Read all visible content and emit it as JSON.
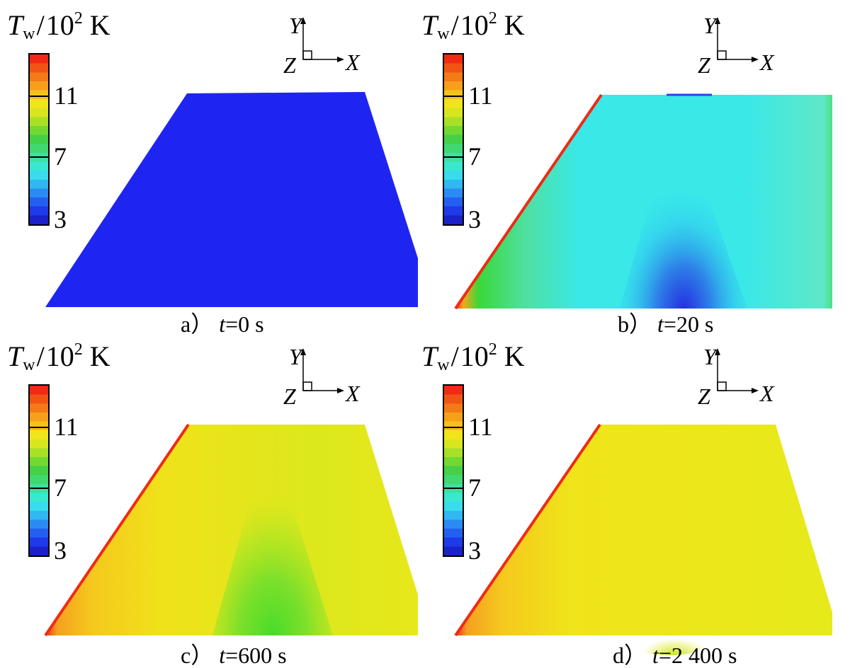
{
  "colorbar": {
    "symbol": "T",
    "subscript": "w",
    "slash": "/",
    "base": "10",
    "exponent": "2",
    "unit": "K",
    "ticks": [
      "11",
      "7",
      "3"
    ],
    "tick_values": [
      11,
      7,
      3
    ],
    "range": [
      3,
      14
    ]
  },
  "axes": {
    "x": "X",
    "y": "Y",
    "z": "Z"
  },
  "panels": [
    {
      "letter": "a）",
      "time_var": "t",
      "time_text": "=0 s",
      "state": "uniform-blue"
    },
    {
      "letter": "b）",
      "time_var": "t",
      "time_text": "=20 s",
      "state": "cool-cyan-with-hot-left-edge"
    },
    {
      "letter": "c）",
      "time_var": "t",
      "time_text": "=600 s",
      "state": "yellow-with-green-core"
    },
    {
      "letter": "d）",
      "time_var": "t",
      "time_text": "=2 400 s",
      "state": "near-uniform-yellow"
    }
  ],
  "colors": {
    "blue": "#1f25f0",
    "cyan": "#28f0f0",
    "light_cyan": "#5fe8d8",
    "green": "#3ad83a",
    "yellow_green": "#c8e81e",
    "yellow": "#f0ea1a",
    "orange": "#f5a81a",
    "red": "#f02a14"
  }
}
